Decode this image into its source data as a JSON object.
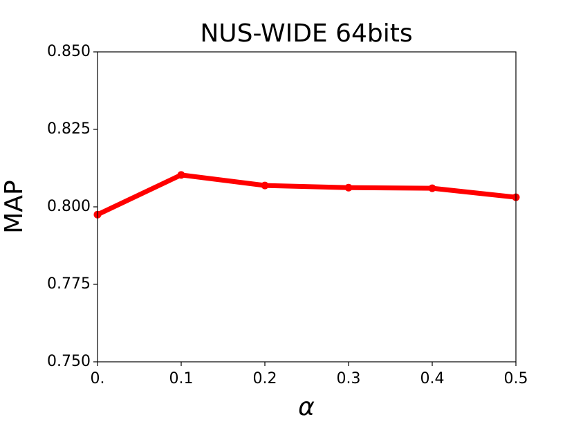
{
  "chart_data": {
    "type": "line",
    "title": "NUS-WIDE 64bits",
    "xlabel": "α",
    "ylabel": "MAP",
    "x": [
      0,
      0.1,
      0.2,
      0.3,
      0.4,
      0.5
    ],
    "series": [
      {
        "name": "MAP",
        "color": "#ff0000",
        "values": [
          0.7975,
          0.8103,
          0.8069,
          0.8062,
          0.806,
          0.8031
        ]
      }
    ],
    "xlim": [
      0,
      0.5
    ],
    "xticks": [
      {
        "value": 0,
        "label": "0."
      },
      0.1,
      0.2,
      0.3,
      0.4,
      0.5
    ],
    "ylim": [
      0.75,
      0.85
    ],
    "yticks": [
      {
        "value": 0.75,
        "label": "0.750"
      },
      0.775,
      {
        "value": 0.8,
        "label": "0.800"
      },
      0.825,
      {
        "value": 0.85,
        "label": "0.850"
      }
    ],
    "grid": false
  }
}
